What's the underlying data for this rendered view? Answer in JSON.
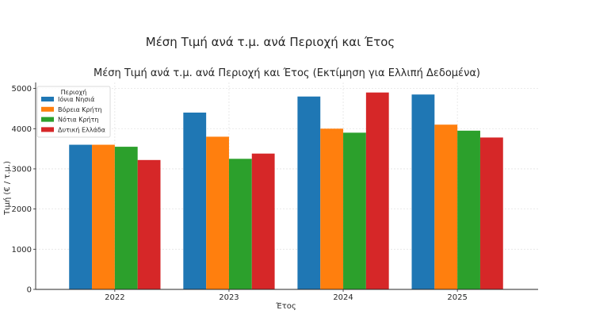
{
  "figure": {
    "suptitle": "Μέση Τιμή ανά τ.μ. ανά Περιοχή και Έτος"
  },
  "chart_data": {
    "type": "bar",
    "title": "Μέση Τιμή ανά τ.μ. ανά Περιοχή και Έτος (Εκτίμηση για Ελλιπή Δεδομένα)",
    "xlabel": "Έτος",
    "ylabel": "Τιμή (€ / τ.μ.)",
    "categories": [
      "2022",
      "2023",
      "2024",
      "2025"
    ],
    "ylim": [
      0,
      5150
    ],
    "yticks": [
      0,
      1000,
      2000,
      3000,
      4000,
      5000
    ],
    "grid": true,
    "legend": {
      "title": "Περιοχή",
      "placement": "top-left"
    },
    "series": [
      {
        "name": "Ιόνια Νησιά",
        "color": "#1f77b4",
        "values": [
          3600,
          4400,
          4800,
          4850
        ]
      },
      {
        "name": "Βόρεια Κρήτη",
        "color": "#ff7f0e",
        "values": [
          3600,
          3800,
          4000,
          4100
        ]
      },
      {
        "name": "Νότια Κρήτη",
        "color": "#2ca02c",
        "values": [
          3550,
          3250,
          3900,
          3950
        ]
      },
      {
        "name": "Δυτική Ελλάδα",
        "color": "#d62728",
        "values": [
          3220,
          3380,
          4900,
          3780
        ]
      }
    ]
  }
}
